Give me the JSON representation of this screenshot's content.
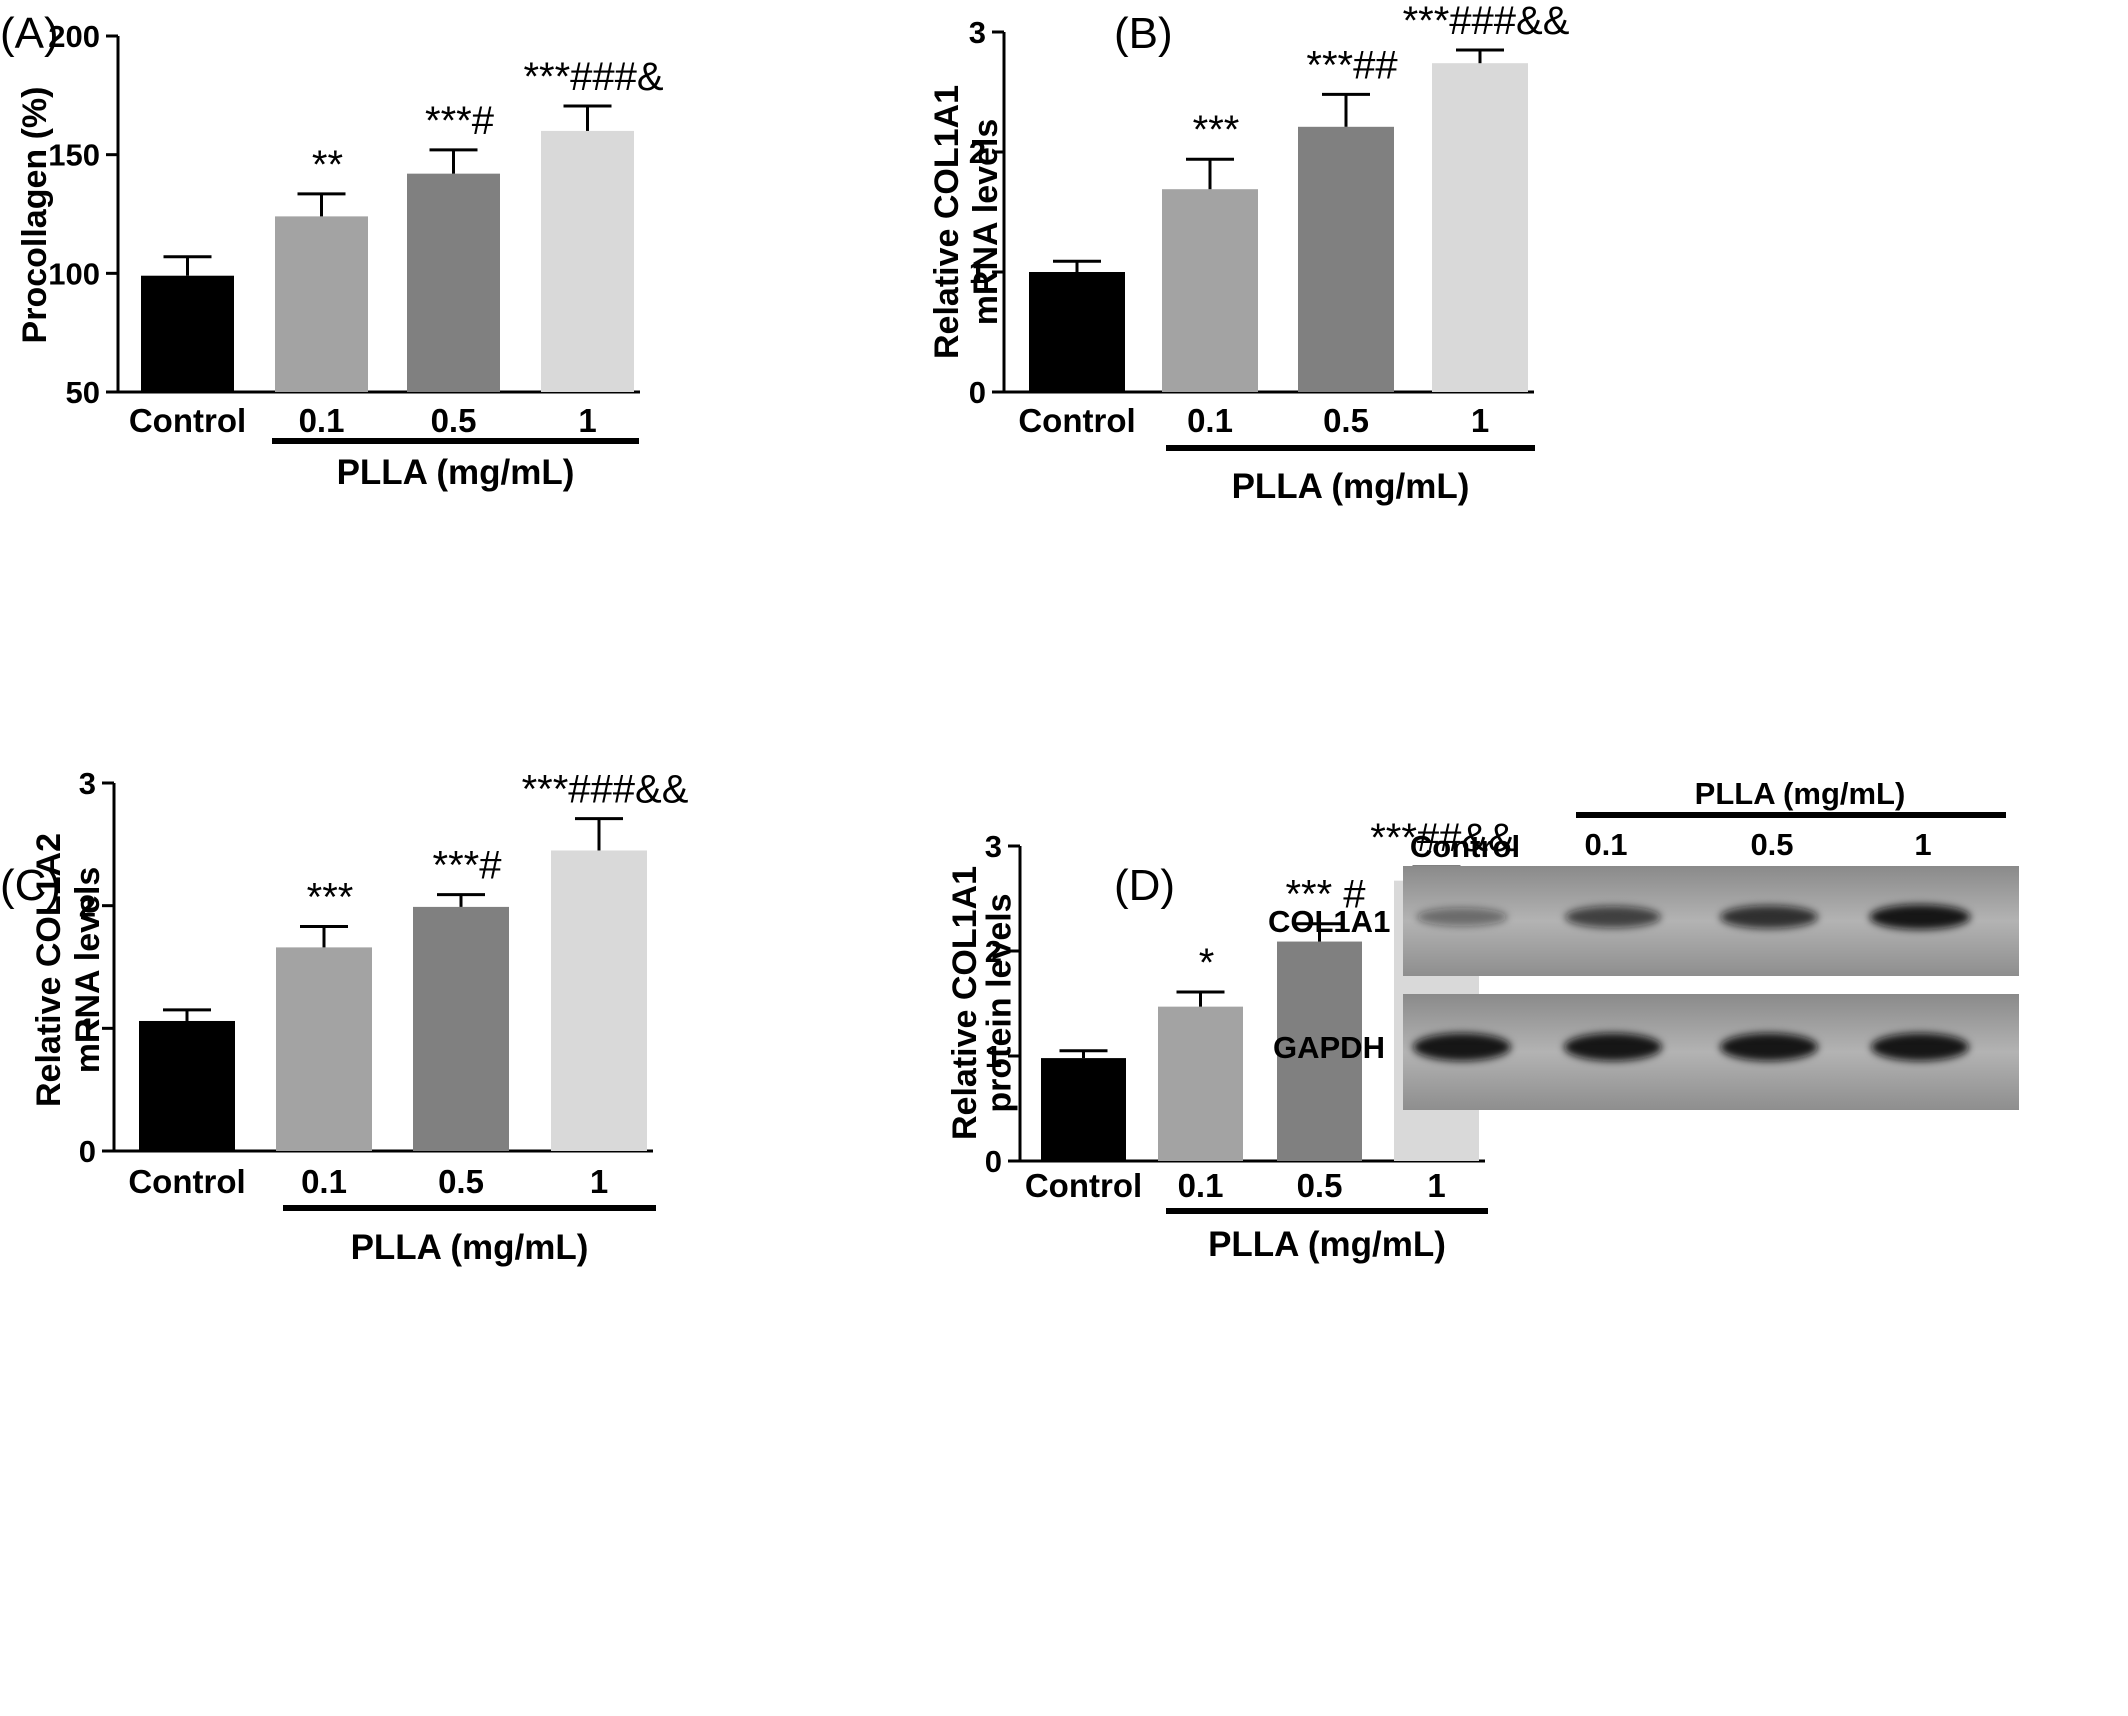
{
  "chart_data": [
    {
      "panel": "(A)",
      "type": "bar",
      "ylabel": "Procollagen (%)",
      "ylim": [
        50,
        200
      ],
      "yticks": [
        50,
        100,
        150,
        200
      ],
      "categories": [
        "Control",
        "0.1",
        "0.5",
        "1"
      ],
      "values": [
        99,
        124,
        142,
        160
      ],
      "errors": [
        8,
        9.5,
        10,
        10.5
      ],
      "colors": [
        "#000000",
        "#a3a3a3",
        "#808080",
        "#d9d9d9"
      ],
      "significance": [
        "",
        "**",
        "***#",
        "***###&"
      ],
      "group_label": "PLLA (mg/mL)"
    },
    {
      "panel": "(B)",
      "type": "bar",
      "ylabel": "Relative COL1A1 mRNA levels",
      "ylabel_lines": [
        "Relative COL1A1",
        "mRNA levels"
      ],
      "ylim": [
        0,
        3
      ],
      "yticks": [
        0,
        1,
        2,
        3
      ],
      "categories": [
        "Control",
        "0.1",
        "0.5",
        "1"
      ],
      "values": [
        1.0,
        1.69,
        2.21,
        2.74
      ],
      "errors": [
        0.09,
        0.25,
        0.27,
        0.11
      ],
      "colors": [
        "#000000",
        "#a3a3a3",
        "#808080",
        "#d9d9d9"
      ],
      "significance": [
        "",
        "***",
        "***##",
        "***###&&"
      ],
      "group_label": "PLLA (mg/mL)"
    },
    {
      "panel": "(C)",
      "type": "bar",
      "ylabel": "Relative COL1A2 mRNA levels",
      "ylabel_lines": [
        "Relative COL1A2",
        "mRNA levels"
      ],
      "ylim": [
        0,
        3
      ],
      "yticks": [
        0,
        1,
        2,
        3
      ],
      "categories": [
        "Control",
        "0.1",
        "0.5",
        "1"
      ],
      "values": [
        1.06,
        1.66,
        1.99,
        2.45
      ],
      "errors": [
        0.09,
        0.17,
        0.1,
        0.26
      ],
      "colors": [
        "#000000",
        "#a3a3a3",
        "#808080",
        "#d9d9d9"
      ],
      "significance": [
        "",
        "***",
        "***#",
        "***###&&"
      ],
      "group_label": "PLLA (mg/mL)"
    },
    {
      "panel": "(D)",
      "type": "bar",
      "ylabel": "Relative COL1A1 protein levels",
      "ylabel_lines": [
        "Relative COL1A1",
        "protein levels"
      ],
      "ylim": [
        0,
        3
      ],
      "yticks": [
        0,
        1,
        2,
        3
      ],
      "categories": [
        "Control",
        "0.1",
        "0.5",
        "1"
      ],
      "values": [
        0.98,
        1.47,
        2.09,
        2.67
      ],
      "errors": [
        0.07,
        0.14,
        0.17,
        0.13
      ],
      "colors": [
        "#000000",
        "#a3a3a3",
        "#808080",
        "#d9d9d9"
      ],
      "significance": [
        "",
        "*",
        "*** #",
        "***##&&"
      ],
      "group_label": "PLLA (mg/mL)"
    }
  ],
  "western_blot": {
    "group_label": "PLLA (mg/mL)",
    "lane_labels": [
      "Control",
      "0.1",
      "0.5",
      "1"
    ],
    "rows": [
      {
        "label": "COL1A1",
        "band_intensity": [
          0.45,
          0.7,
          0.8,
          0.95
        ]
      },
      {
        "label": "GAPDH",
        "band_intensity": [
          0.95,
          0.95,
          0.95,
          0.95
        ]
      }
    ]
  }
}
